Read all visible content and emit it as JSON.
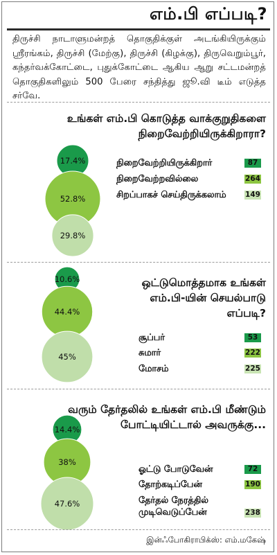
{
  "header": {
    "title": "எம்.பி எப்படி?",
    "intro": "திருச்சி நாடாளுமன்றத் தொகுதிக்குள் அடங்கியிருக்கும் ஸ்ரீரங்கம், திருச்சி (மேற்கு), திருச்சி (கிழக்கு), திருவெறும்பூர், கந்தர்வக்கோட்டை, புதுக்கோட்டை ஆகிய ஆறு சட்டமன்றத் தொகுதிகளிலும் 500 பேரை சந்தித்து ஜூ.வி டீம் எடுத்த சர்வே."
  },
  "colors": {
    "dark_green": "#1a9a4a",
    "mid_green": "#8dc642",
    "light_green": "#c0deaa",
    "badge_dark": "#1a9a4a",
    "badge_mid": "#8dc642",
    "badge_light": "#c9e4b4"
  },
  "chart_data": [
    {
      "type": "bubble",
      "title": "உங்கள் எம்.பி கொடுத்த வாக்குறுதிகளை நிறைவேற்றியிருக்கிறாரா?",
      "categories": [
        "நிறைவேற்றியிருக்கிறார்",
        "நிறைவேற்றவில்லை",
        "சிறப்பாகச் செய்திருக்கலாம்"
      ],
      "values": [
        87,
        264,
        149
      ],
      "percent_labels": [
        "17.4%",
        "52.8%",
        "29.8%"
      ],
      "percents": [
        17.4,
        52.8,
        29.8
      ]
    },
    {
      "type": "bubble",
      "title": "ஒட்டுமொத்தமாக உங்கள் எம்.பி-யின் செயல்பாடு எப்படி?",
      "categories": [
        "சூப்பர்",
        "சுமார்",
        "மோசம்"
      ],
      "values": [
        53,
        222,
        225
      ],
      "percent_labels": [
        "10.6%",
        "44.4%",
        "45%"
      ],
      "percents": [
        10.6,
        44.4,
        45
      ]
    },
    {
      "type": "bubble",
      "title": "வரும் தேர்தலில் உங்கள் எம்.பி மீண்டும் போட்டியிட்டால் அவருக்கு...",
      "categories": [
        "ஓட்டு போடுவேன்",
        "தோற்கடிப்பேன்",
        "தேர்தல் நேரத்தில் முடிவெடுப்பேன்"
      ],
      "values": [
        72,
        190,
        238
      ],
      "percent_labels": [
        "14.4%",
        "38%",
        "47.6%"
      ],
      "percents": [
        14.4,
        38,
        47.6
      ]
    }
  ],
  "footer": {
    "credit": "இன்ஃபோகிராபிக்ஸ்: எம்.மகேஷ்"
  }
}
